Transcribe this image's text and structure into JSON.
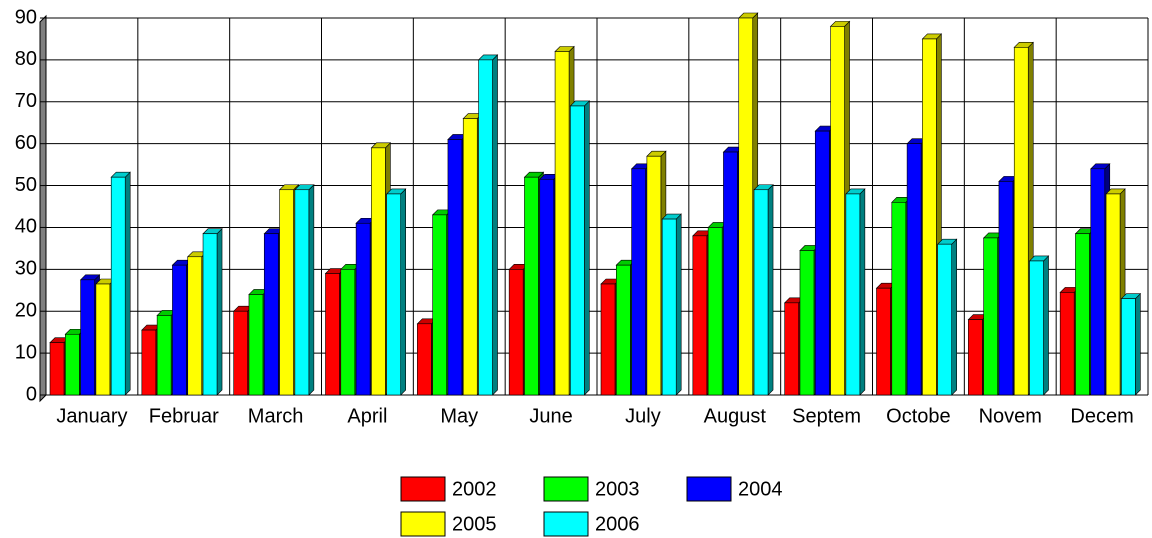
{
  "chart_data": {
    "type": "bar3d",
    "categories": [
      "January",
      "Februar",
      "March",
      "April",
      "May",
      "June",
      "July",
      "August",
      "Septem",
      "Octobe",
      "Novem",
      "Decem"
    ],
    "series": [
      {
        "name": "2002",
        "color": "#ff0000",
        "values": [
          12.5,
          15.5,
          20,
          29,
          17,
          30,
          26.5,
          38,
          22,
          25.5,
          18,
          24.5
        ]
      },
      {
        "name": "2003",
        "color": "#00ff00",
        "values": [
          14.5,
          19,
          24,
          30,
          43,
          52,
          31,
          40,
          34.5,
          46,
          37.5,
          38.5
        ]
      },
      {
        "name": "2004",
        "color": "#0000ff",
        "values": [
          27.5,
          31,
          38.5,
          41,
          61,
          51.5,
          54,
          58,
          63,
          60,
          51,
          54
        ]
      },
      {
        "name": "2005",
        "color": "#ffff00",
        "values": [
          26.5,
          33,
          49,
          59,
          66,
          82,
          57,
          90,
          88,
          85,
          83,
          48
        ]
      },
      {
        "name": "2006",
        "color": "#00ffff",
        "values": [
          52,
          38.5,
          49,
          48,
          80,
          69,
          42,
          49,
          48,
          36,
          32,
          23
        ]
      }
    ],
    "ylim": [
      0,
      90
    ],
    "yticks": [
      0,
      10,
      20,
      30,
      40,
      50,
      60,
      70,
      80,
      90
    ],
    "grid": true
  }
}
